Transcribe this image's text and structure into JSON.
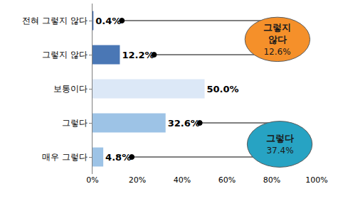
{
  "chart_data": {
    "type": "bar",
    "orientation": "horizontal",
    "categories": [
      "전혀 그렇지 않다",
      "그렇지 않다",
      "보통이다",
      "그렇다",
      "매우 그렇다"
    ],
    "values": [
      0.4,
      12.2,
      50.0,
      32.6,
      4.8
    ],
    "value_labels": [
      "0.4%",
      "12.2%",
      "50.0%",
      "32.6%",
      "4.8%"
    ],
    "colors": [
      "#3f6db5",
      "#4a77b5",
      "#dce8f7",
      "#9dc3e6",
      "#9dc3e6"
    ],
    "xlim": [
      0,
      100
    ],
    "xticks": [
      {
        "value": 0,
        "label": "0%"
      },
      {
        "value": 20,
        "label": "20%"
      },
      {
        "value": 40,
        "label": "40%"
      },
      {
        "value": 60,
        "label": "60%"
      },
      {
        "value": 80,
        "label": "80%"
      },
      {
        "value": 100,
        "label": "100%"
      }
    ],
    "grid": false,
    "data_labels": true,
    "annotations": [
      {
        "text": [
          "그렇지",
          "않다"
        ],
        "value_label": "12.6%",
        "color": "#f5902a",
        "categories": [
          "전혀 그렇지 않다",
          "그렇지 않다"
        ]
      },
      {
        "text": [
          "그렇다"
        ],
        "value_label": "37.4%",
        "color": "#27a3c3",
        "categories": [
          "그렇다",
          "매우 그렇다"
        ]
      }
    ]
  }
}
